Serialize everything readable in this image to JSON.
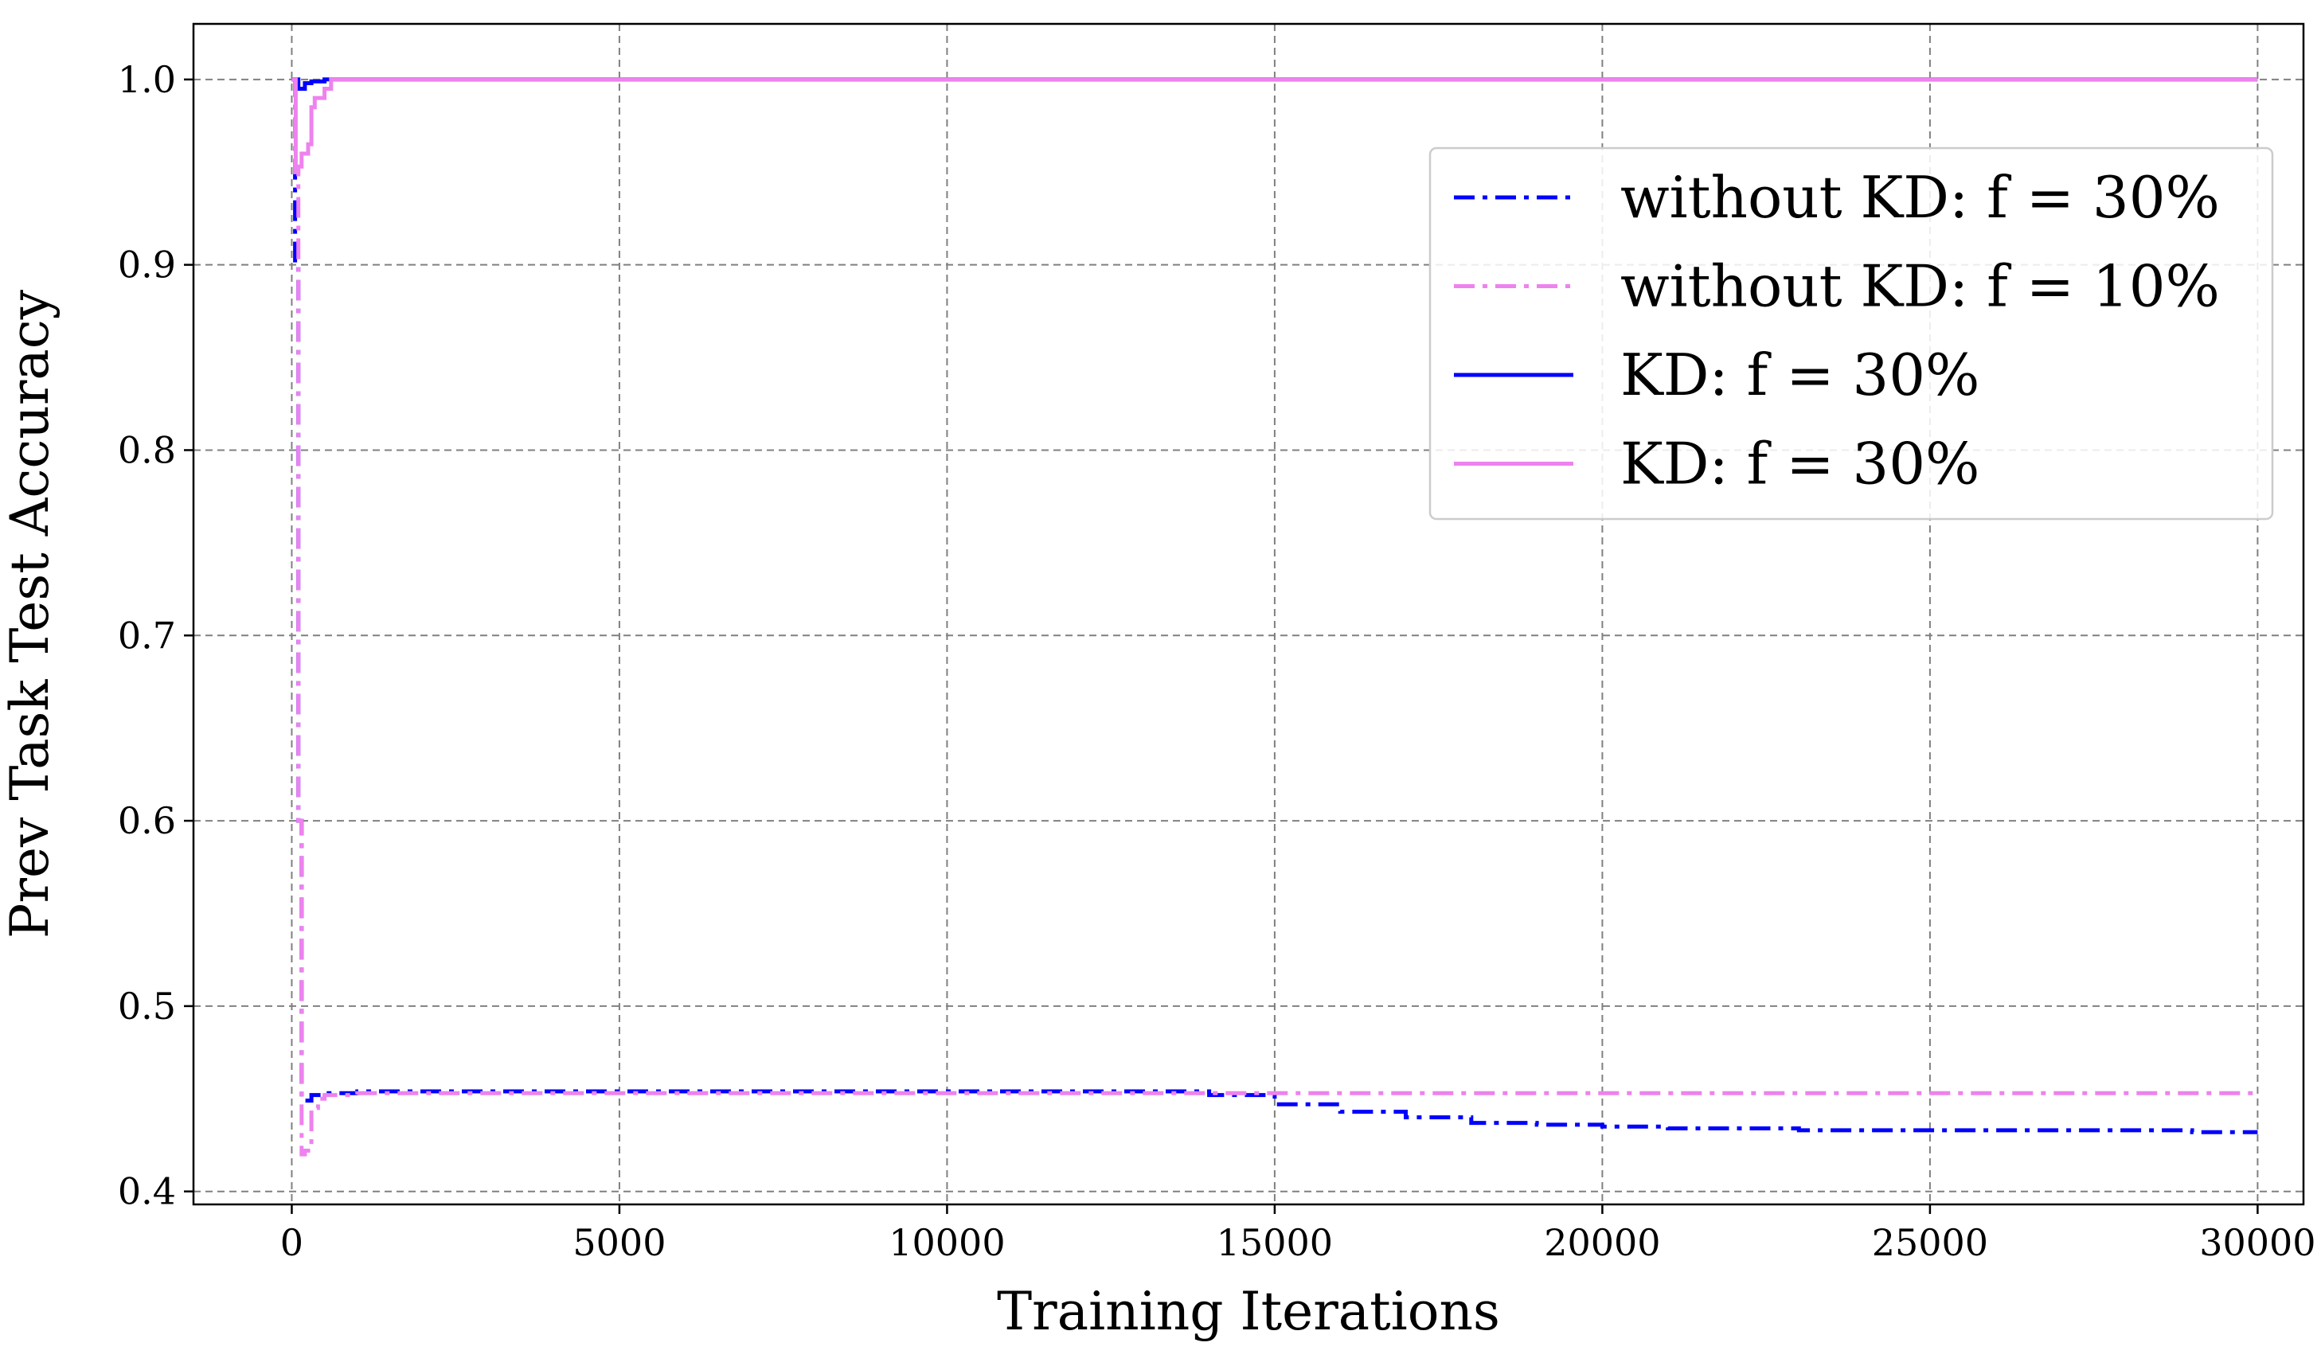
{
  "chart_data": {
    "type": "line",
    "title": "",
    "xlabel": "Training Iterations",
    "ylabel": "Prev Task Test Accuracy",
    "xlim": [
      -1500,
      30700
    ],
    "ylim": [
      0.393,
      1.03
    ],
    "x_ticks": [
      0,
      5000,
      10000,
      15000,
      20000,
      25000,
      30000
    ],
    "x_tick_labels": [
      "0",
      "5000",
      "10000",
      "15000",
      "20000",
      "25000",
      "30000"
    ],
    "y_ticks": [
      0.4,
      0.5,
      0.6,
      0.7,
      0.8,
      0.9,
      1.0
    ],
    "y_tick_labels": [
      "0.4",
      "0.5",
      "0.6",
      "0.7",
      "0.8",
      "0.9",
      "1.0"
    ],
    "grid": true,
    "legend_position": "upper right",
    "series": [
      {
        "name": "without KD: f = 30%",
        "color": "#0000ff",
        "style": "dashdot",
        "x": [
          0,
          50,
          100,
          150,
          200,
          300,
          500,
          1000,
          5000,
          10000,
          13000,
          14000,
          15000,
          16000,
          17000,
          18000,
          19000,
          20000,
          21000,
          22000,
          23000,
          24000,
          25000,
          26000,
          27000,
          28000,
          29000,
          30000
        ],
        "y": [
          1.0,
          0.9,
          0.6,
          0.45,
          0.449,
          0.452,
          0.453,
          0.454,
          0.454,
          0.454,
          0.454,
          0.452,
          0.447,
          0.443,
          0.44,
          0.437,
          0.436,
          0.435,
          0.434,
          0.434,
          0.433,
          0.433,
          0.433,
          0.433,
          0.433,
          0.433,
          0.432,
          0.432
        ]
      },
      {
        "name": "without KD: f = 10%",
        "color": "#ee82ee",
        "style": "dashdot",
        "x": [
          0,
          50,
          100,
          150,
          200,
          300,
          400,
          500,
          1000,
          5000,
          10000,
          15000,
          20000,
          25000,
          30000
        ],
        "y": [
          1.0,
          0.95,
          0.6,
          0.42,
          0.422,
          0.445,
          0.45,
          0.452,
          0.453,
          0.453,
          0.453,
          0.453,
          0.453,
          0.453,
          0.453
        ]
      },
      {
        "name": "KD: f = 30%",
        "color": "#0000ff",
        "style": "solid",
        "x": [
          0,
          100,
          200,
          300,
          500,
          800,
          1000,
          5000,
          10000,
          15000,
          20000,
          25000,
          30000
        ],
        "y": [
          1.0,
          0.995,
          0.998,
          0.999,
          1.0,
          1.0,
          1.0,
          1.0,
          1.0,
          1.0,
          1.0,
          1.0,
          1.0
        ]
      },
      {
        "name": "KD: f = 30%",
        "color": "#ee82ee",
        "style": "solid",
        "x": [
          0,
          60,
          100,
          150,
          200,
          250,
          300,
          350,
          400,
          500,
          600,
          700,
          1000,
          5000,
          10000,
          15000,
          20000,
          25000,
          30000
        ],
        "y": [
          1.0,
          0.95,
          0.953,
          0.96,
          0.96,
          0.965,
          0.985,
          0.99,
          0.99,
          0.995,
          1.0,
          1.0,
          1.0,
          1.0,
          1.0,
          1.0,
          1.0,
          1.0,
          1.0
        ]
      }
    ]
  }
}
